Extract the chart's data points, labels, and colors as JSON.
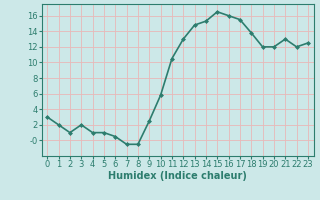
{
  "x": [
    0,
    1,
    2,
    3,
    4,
    5,
    6,
    7,
    8,
    9,
    10,
    11,
    12,
    13,
    14,
    15,
    16,
    17,
    18,
    19,
    20,
    21,
    22,
    23
  ],
  "y": [
    3,
    2,
    1,
    2,
    1,
    1,
    0.5,
    -0.5,
    -0.5,
    2.5,
    5.8,
    10.5,
    13,
    14.8,
    15.3,
    16.5,
    16,
    15.5,
    13.8,
    12,
    12,
    13,
    12,
    12.5
  ],
  "line_color": "#2d7d6e",
  "marker": "D",
  "marker_size": 2,
  "bg_color": "#cce8e8",
  "grid_color": "#e8b8b8",
  "axis_color": "#2d7d6e",
  "xlabel": "Humidex (Indice chaleur)",
  "ylim": [
    -2,
    17.5
  ],
  "yticks": [
    0,
    2,
    4,
    6,
    8,
    10,
    12,
    14,
    16
  ],
  "ytick_labels": [
    "-0",
    "2",
    "4",
    "6",
    "8",
    "10",
    "12",
    "14",
    "16"
  ],
  "xlim": [
    -0.5,
    23.5
  ],
  "xticks": [
    0,
    1,
    2,
    3,
    4,
    5,
    6,
    7,
    8,
    9,
    10,
    11,
    12,
    13,
    14,
    15,
    16,
    17,
    18,
    19,
    20,
    21,
    22,
    23
  ],
  "xlabel_fontsize": 7,
  "tick_fontsize": 6,
  "linewidth": 1.2
}
